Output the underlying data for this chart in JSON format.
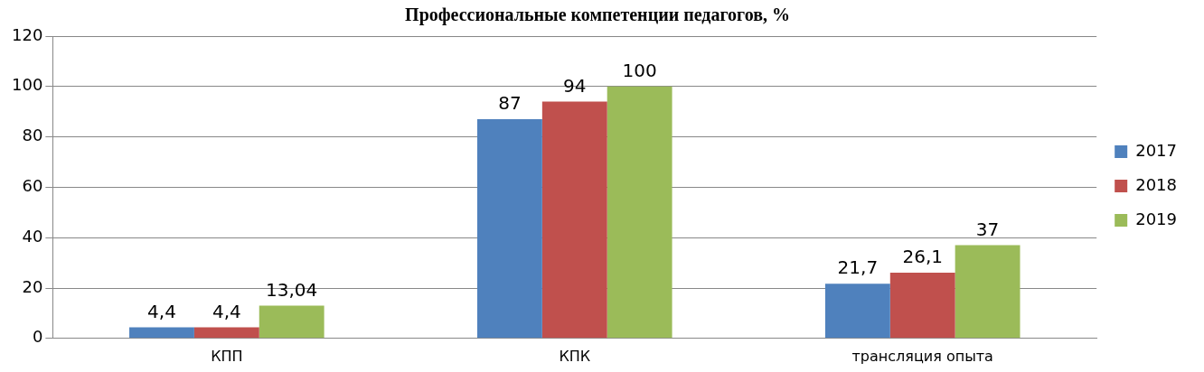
{
  "chart_data": {
    "type": "bar",
    "title": "Профессиональные компетенции педагогов, %",
    "categories": [
      "КПП",
      "КПК",
      "трансляция опыта"
    ],
    "series": [
      {
        "name": "2017",
        "color": "#4f81bd",
        "values": [
          4.4,
          87,
          21.7
        ],
        "value_labels": [
          "4,4",
          "87",
          "21,7"
        ]
      },
      {
        "name": "2018",
        "color": "#c0504d",
        "values": [
          4.4,
          94,
          26.1
        ],
        "value_labels": [
          "4,4",
          "94",
          "26,1"
        ]
      },
      {
        "name": "2019",
        "color": "#9bbb59",
        "values": [
          13.04,
          100,
          37
        ],
        "value_labels": [
          "13,04",
          "100",
          "37"
        ]
      }
    ],
    "ylim": [
      0,
      120
    ],
    "yticks": [
      0,
      20,
      40,
      60,
      80,
      100,
      120
    ],
    "grid": "y",
    "legend": "right"
  }
}
